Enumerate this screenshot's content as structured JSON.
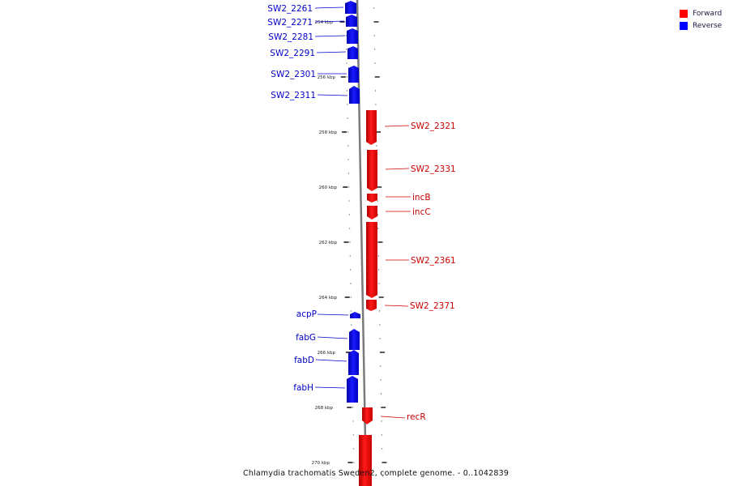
{
  "legend": [
    {
      "label": "Forward",
      "color": "#ff0000"
    },
    {
      "label": "Reverse",
      "color": "#0000ff"
    }
  ],
  "caption": "Chlamydia trachomatis Sweden2, complete genome. - 0..1042839",
  "ruler": {
    "major_labels": [
      "254 kbp",
      "256 kbp",
      "258 kbp",
      "260 kbp",
      "262 kbp",
      "264 kbp",
      "266 kbp",
      "268 kbp",
      "270 kbp"
    ]
  },
  "genes": {
    "reverse": [
      {
        "name": "SW2_2261"
      },
      {
        "name": "SW2_2271"
      },
      {
        "name": "SW2_2281"
      },
      {
        "name": "SW2_2291"
      },
      {
        "name": "SW2_2301"
      },
      {
        "name": "SW2_2311"
      },
      {
        "name": "acpP"
      },
      {
        "name": "fabG"
      },
      {
        "name": "fabD"
      },
      {
        "name": "fabH"
      }
    ],
    "forward": [
      {
        "name": "SW2_2321"
      },
      {
        "name": "SW2_2331"
      },
      {
        "name": "incB"
      },
      {
        "name": "incC"
      },
      {
        "name": "SW2_2361"
      },
      {
        "name": "SW2_2371"
      },
      {
        "name": "recR"
      }
    ]
  }
}
